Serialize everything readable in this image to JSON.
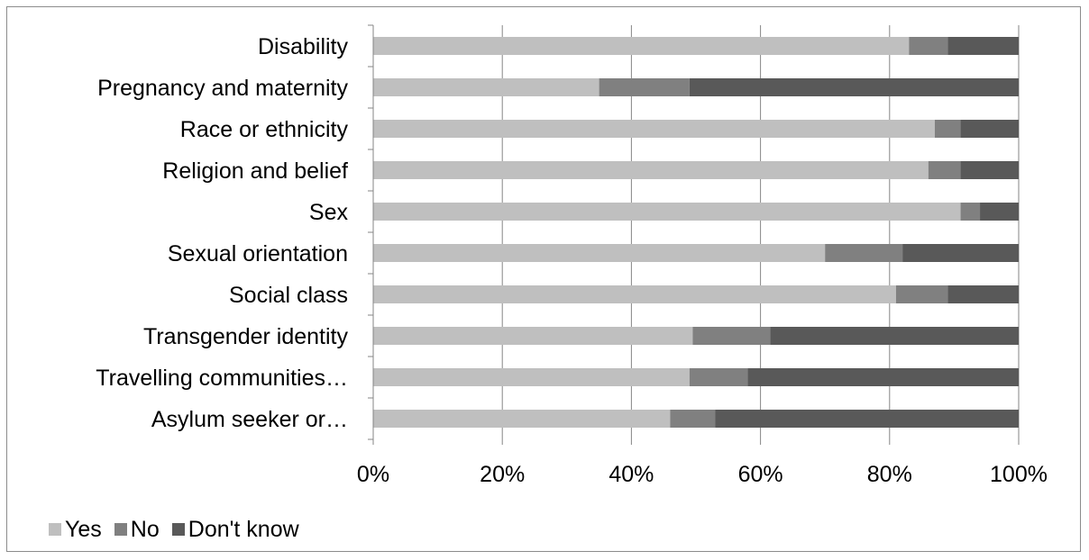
{
  "chart_data": {
    "type": "bar",
    "orientation": "horizontal",
    "stacked": "percent",
    "categories": [
      "Disability",
      "Pregnancy and maternity",
      "Race or ethnicity",
      "Religion and belief",
      "Sex",
      "Sexual orientation",
      "Social class",
      "Transgender identity",
      "Travelling communities…",
      "Asylum seeker or…"
    ],
    "series": [
      {
        "name": "Yes",
        "color": "#bfbfbf",
        "values": [
          83,
          35,
          87,
          86,
          91,
          70,
          81,
          49.5,
          49,
          46
        ]
      },
      {
        "name": "No",
        "color": "#808080",
        "values": [
          6,
          14,
          4,
          5,
          3,
          12,
          8,
          12,
          9,
          7
        ]
      },
      {
        "name": "Don't know",
        "color": "#595959",
        "values": [
          11,
          51,
          9,
          9,
          6,
          18,
          11,
          38.5,
          42,
          47
        ]
      }
    ],
    "xlim": [
      0,
      100
    ],
    "x_ticks": [
      "0%",
      "20%",
      "40%",
      "60%",
      "80%",
      "100%"
    ],
    "grid": true,
    "legend_position": "bottom-left"
  }
}
